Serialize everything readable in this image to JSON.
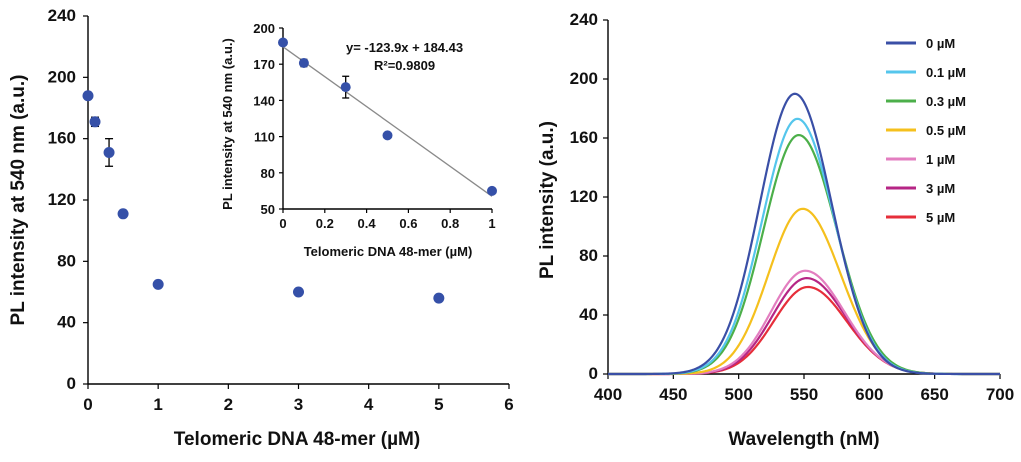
{
  "chart_data": [
    {
      "type": "scatter",
      "xlabel": "Telomeric DNA 48-mer (µM)",
      "ylabel": "PL intensity at 540 nm (a.u.)",
      "xlim": [
        0,
        6
      ],
      "ylim": [
        0,
        240
      ],
      "x_ticks": [
        "0",
        "1",
        "2",
        "3",
        "4",
        "5",
        "6"
      ],
      "y_ticks": [
        "0",
        "40",
        "80",
        "120",
        "160",
        "200",
        "240"
      ],
      "marker_color": "#3550a8",
      "points": [
        {
          "x": 0,
          "y": 188,
          "err": 0
        },
        {
          "x": 0.1,
          "y": 171,
          "err": 3
        },
        {
          "x": 0.3,
          "y": 151,
          "err": 9
        },
        {
          "x": 0.5,
          "y": 111,
          "err": 0
        },
        {
          "x": 1,
          "y": 65,
          "err": 0
        },
        {
          "x": 3,
          "y": 60,
          "err": 0
        },
        {
          "x": 5,
          "y": 56,
          "err": 0
        }
      ]
    },
    {
      "type": "scatter",
      "xlabel": "Telomeric DNA 48-mer (µM)",
      "ylabel": "PL intensity at 540 nm (a.u.)",
      "xlim": [
        0,
        1
      ],
      "ylim": [
        50,
        200
      ],
      "x_ticks": [
        "0",
        "0.2",
        "0.4",
        "0.6",
        "0.8",
        "1"
      ],
      "y_ticks": [
        "50",
        "80",
        "110",
        "140",
        "170",
        "200"
      ],
      "marker_color": "#3550a8",
      "points": [
        {
          "x": 0,
          "y": 188,
          "err": 0
        },
        {
          "x": 0.1,
          "y": 171,
          "err": 3
        },
        {
          "x": 0.3,
          "y": 151,
          "err": 9
        },
        {
          "x": 0.5,
          "y": 111,
          "err": 0
        },
        {
          "x": 1,
          "y": 65,
          "err": 0
        }
      ],
      "fit": {
        "slope": -123.9,
        "intercept": 184.43
      },
      "equation_label": "y= -123.9x + 184.43",
      "r2_label": "R²=0.9809"
    },
    {
      "type": "line",
      "xlabel": "Wavelength (nM)",
      "ylabel": "PL intensity (a.u.)",
      "xlim": [
        400,
        700
      ],
      "ylim": [
        0,
        240
      ],
      "x_ticks": [
        "400",
        "450",
        "500",
        "550",
        "600",
        "650",
        "700"
      ],
      "y_ticks": [
        "0",
        "40",
        "80",
        "120",
        "160",
        "200",
        "240"
      ],
      "legend_position": "top-right",
      "series": [
        {
          "name": "0 µM",
          "color": "#3a4fa6",
          "peak": 190,
          "center": 543,
          "sigma_left": 38,
          "sigma_right": 40
        },
        {
          "name": "0.1 µM",
          "color": "#55c6ec",
          "peak": 173,
          "center": 545,
          "sigma_left": 38,
          "sigma_right": 40
        },
        {
          "name": "0.3 µM",
          "color": "#4caf4a",
          "peak": 162,
          "center": 546,
          "sigma_left": 38,
          "sigma_right": 41
        },
        {
          "name": "0.5 µM",
          "color": "#f5c01d",
          "peak": 112,
          "center": 549,
          "sigma_left": 37,
          "sigma_right": 41
        },
        {
          "name": "1 µM",
          "color": "#e37ec0",
          "peak": 70,
          "center": 551,
          "sigma_left": 37,
          "sigma_right": 42
        },
        {
          "name": "3 µM",
          "color": "#b62585",
          "peak": 65,
          "center": 552,
          "sigma_left": 37,
          "sigma_right": 42
        },
        {
          "name": "5 µM",
          "color": "#e62e3a",
          "peak": 59,
          "center": 553,
          "sigma_left": 37,
          "sigma_right": 42
        }
      ]
    }
  ]
}
